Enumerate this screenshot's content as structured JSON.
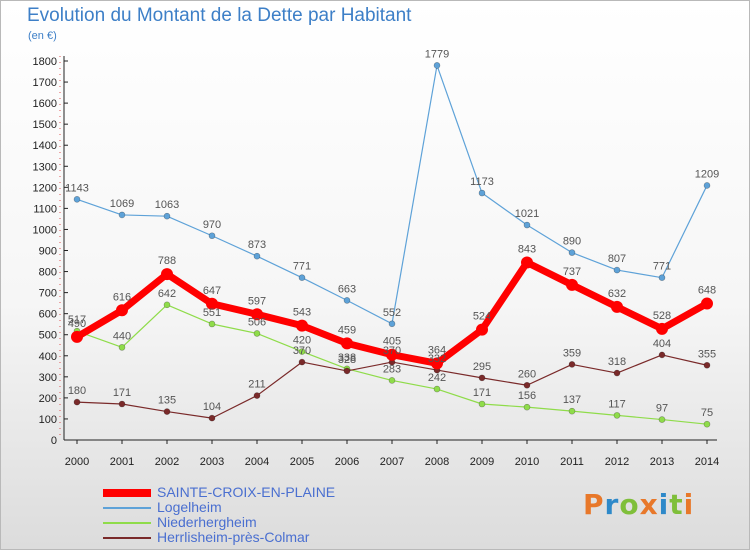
{
  "title": "Evolution du Montant de la Dette par Habitant",
  "subtitle": "(en €)",
  "logo": {
    "text": "Proxiti",
    "colors": [
      "#e8782a",
      "#2e89c9",
      "#7fbf3a",
      "#e8782a",
      "#2e89c9",
      "#7fbf3a",
      "#e8782a"
    ]
  },
  "chart_data": {
    "type": "line",
    "title": "Evolution du Montant de la Dette par Habitant",
    "unit_label": "(en €)",
    "x": [
      "2000",
      "2001",
      "2002",
      "2003",
      "2004",
      "2005",
      "2006",
      "2007",
      "2008",
      "2009",
      "2010",
      "2011",
      "2012",
      "2013",
      "2014"
    ],
    "ylim": [
      0,
      1800
    ],
    "yticks": [
      0,
      100,
      200,
      300,
      400,
      500,
      600,
      700,
      800,
      900,
      1000,
      1100,
      1200,
      1300,
      1400,
      1500,
      1600,
      1700,
      1800
    ],
    "grid": false,
    "legend_position": "bottom-left",
    "series": [
      {
        "name": "SAINTE-CROIX-EN-PLAINE",
        "color": "#ff0000",
        "width": 7,
        "marker": 6,
        "values": [
          490,
          616,
          788,
          647,
          597,
          543,
          459,
          405,
          364,
          524,
          843,
          737,
          632,
          528,
          648
        ],
        "labels": [
          "490",
          "616",
          "788",
          "647",
          "597",
          "543",
          "459",
          "405",
          "364",
          "524",
          "843",
          "737",
          "632",
          "528",
          "648"
        ]
      },
      {
        "name": "Logelheim",
        "color": "#5ea2d8",
        "width": 1.2,
        "marker": 3,
        "values": [
          1143,
          1069,
          1063,
          970,
          873,
          771,
          663,
          552,
          1779,
          1173,
          1021,
          890,
          807,
          771,
          1209
        ],
        "labels": [
          "1143",
          "1069",
          "1063",
          "970",
          "873",
          "771",
          "663",
          "552",
          "1779",
          "1173",
          "1021",
          "890",
          "807",
          "771",
          "1209"
        ]
      },
      {
        "name": "Niederhergheim",
        "color": "#8fdc4a",
        "width": 1.2,
        "marker": 3,
        "values": [
          517,
          440,
          642,
          551,
          506,
          420,
          338,
          283,
          242,
          171,
          156,
          137,
          117,
          97,
          75
        ],
        "labels": [
          "517",
          "440",
          "642",
          "551",
          "506",
          "420",
          "338",
          "283",
          "242",
          "171",
          "156",
          "137",
          "117",
          "97",
          "75"
        ]
      },
      {
        "name": "Herrlisheim-près-Colmar",
        "color": "#7a2a2a",
        "width": 1.2,
        "marker": 3,
        "values": [
          180,
          171,
          135,
          104,
          211,
          370,
          328,
          370,
          332,
          295,
          260,
          359,
          318,
          404,
          355
        ],
        "labels": [
          "180",
          "171",
          "135",
          "104",
          "211",
          "370",
          "328",
          "370",
          "332",
          "295",
          "260",
          "359",
          "318",
          "404",
          "355"
        ]
      }
    ]
  }
}
